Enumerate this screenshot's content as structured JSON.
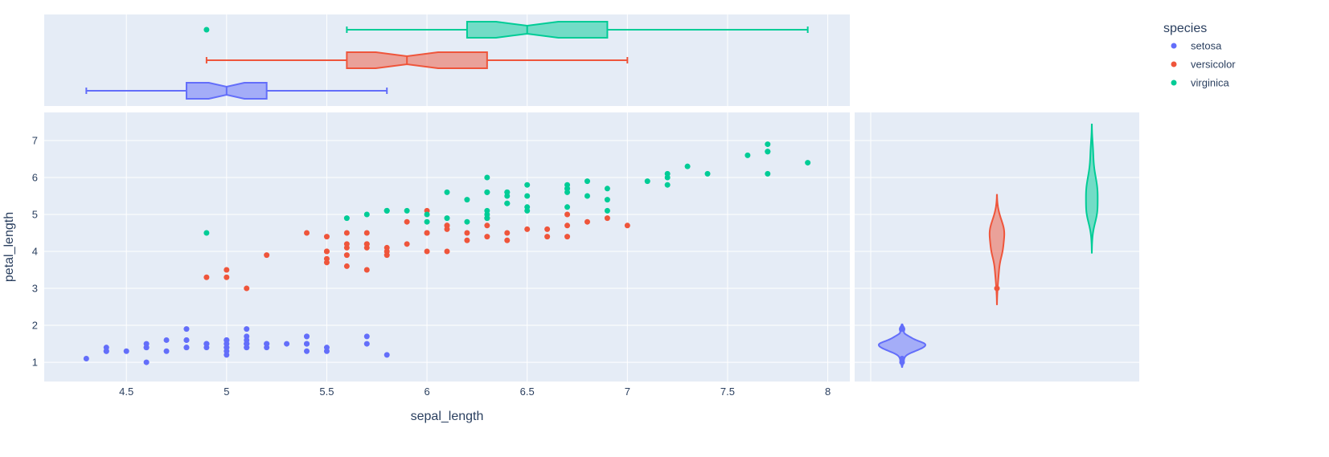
{
  "chart_data": {
    "type": "scatter",
    "xlabel": "sepal_length",
    "ylabel": "petal_length",
    "xlim": [
      4.09,
      8.11
    ],
    "ylim": [
      0.48,
      7.76
    ],
    "xticks": [
      4.5,
      5,
      5.5,
      6,
      6.5,
      7,
      7.5,
      8
    ],
    "xtick_labels": [
      "4.5",
      "5",
      "5.5",
      "6",
      "6.5",
      "7",
      "7.5",
      "8"
    ],
    "yticks": [
      1,
      2,
      3,
      4,
      5,
      6,
      7
    ],
    "ytick_labels": [
      "1",
      "2",
      "3",
      "4",
      "5",
      "6",
      "7"
    ],
    "grid": true,
    "background": "#E5ECF6",
    "legend": {
      "title": "species",
      "placement": "top-right"
    },
    "marginal_x": "box (notched)",
    "marginal_y": "violin",
    "series": [
      {
        "name": "setosa",
        "color": "#636efa",
        "x": [
          5.1,
          4.9,
          4.7,
          4.6,
          5.0,
          5.4,
          4.6,
          5.0,
          4.4,
          4.9,
          5.4,
          4.8,
          4.8,
          4.3,
          5.8,
          5.7,
          5.4,
          5.1,
          5.7,
          5.1,
          5.4,
          5.1,
          4.6,
          5.1,
          4.8,
          5.0,
          5.0,
          5.2,
          5.2,
          4.7,
          4.8,
          5.4,
          5.2,
          5.5,
          4.9,
          5.0,
          5.5,
          4.9,
          4.4,
          5.1,
          5.0,
          4.5,
          4.4,
          5.0,
          5.1,
          4.8,
          5.1,
          4.6,
          5.3,
          5.0
        ],
        "y": [
          1.4,
          1.4,
          1.3,
          1.5,
          1.4,
          1.7,
          1.4,
          1.5,
          1.4,
          1.5,
          1.5,
          1.6,
          1.4,
          1.1,
          1.2,
          1.5,
          1.3,
          1.4,
          1.7,
          1.5,
          1.7,
          1.5,
          1.0,
          1.7,
          1.9,
          1.6,
          1.6,
          1.5,
          1.4,
          1.6,
          1.6,
          1.5,
          1.5,
          1.4,
          1.5,
          1.2,
          1.3,
          1.5,
          1.3,
          1.5,
          1.3,
          1.3,
          1.3,
          1.6,
          1.9,
          1.4,
          1.6,
          1.4,
          1.5,
          1.4
        ],
        "box": {
          "min": 4.3,
          "q1": 4.8,
          "median": 5.0,
          "q3": 5.2,
          "max": 5.8,
          "outliers": []
        }
      },
      {
        "name": "versicolor",
        "color": "#EF553B",
        "x": [
          7.0,
          6.4,
          6.9,
          5.5,
          6.5,
          5.7,
          6.3,
          4.9,
          6.6,
          5.2,
          5.0,
          5.9,
          6.0,
          6.1,
          5.6,
          6.7,
          5.6,
          5.8,
          6.2,
          5.6,
          5.9,
          6.1,
          6.3,
          6.1,
          6.4,
          6.6,
          6.8,
          6.7,
          6.0,
          5.7,
          5.5,
          5.5,
          5.8,
          6.0,
          5.4,
          6.0,
          6.7,
          6.3,
          5.6,
          5.5,
          5.5,
          6.1,
          5.8,
          5.0,
          5.6,
          5.7,
          5.7,
          6.2,
          5.1,
          5.7
        ],
        "y": [
          4.7,
          4.5,
          4.9,
          4.0,
          4.6,
          4.5,
          4.7,
          3.3,
          4.6,
          3.9,
          3.5,
          4.2,
          4.0,
          4.7,
          3.6,
          4.4,
          4.5,
          4.1,
          4.5,
          3.9,
          4.8,
          4.0,
          4.9,
          4.7,
          4.3,
          4.4,
          4.8,
          5.0,
          4.5,
          3.5,
          3.8,
          3.7,
          3.9,
          5.1,
          4.5,
          4.5,
          4.7,
          4.4,
          4.1,
          4.0,
          4.4,
          4.6,
          4.0,
          3.3,
          4.2,
          4.2,
          4.2,
          4.3,
          3.0,
          4.1
        ],
        "box": {
          "min": 4.9,
          "q1": 5.6,
          "median": 5.9,
          "q3": 6.3,
          "max": 7.0,
          "outliers": []
        }
      },
      {
        "name": "virginica",
        "color": "#00cc96",
        "x": [
          6.3,
          5.8,
          7.1,
          6.3,
          6.5,
          7.6,
          4.9,
          7.3,
          6.7,
          7.2,
          6.5,
          6.4,
          6.8,
          5.7,
          5.8,
          6.4,
          6.5,
          7.7,
          7.7,
          6.0,
          6.9,
          5.6,
          7.7,
          6.3,
          6.7,
          7.2,
          6.2,
          6.1,
          6.4,
          7.2,
          7.4,
          7.9,
          6.4,
          6.3,
          6.1,
          7.7,
          6.3,
          6.4,
          6.0,
          6.9,
          6.7,
          6.9,
          5.8,
          6.8,
          6.7,
          6.7,
          6.3,
          6.5,
          6.2,
          5.9
        ],
        "y": [
          6.0,
          5.1,
          5.9,
          5.6,
          5.8,
          6.6,
          4.5,
          6.3,
          5.8,
          6.1,
          5.1,
          5.3,
          5.5,
          5.0,
          5.1,
          5.3,
          5.5,
          6.7,
          6.9,
          5.0,
          5.7,
          4.9,
          6.7,
          4.9,
          5.7,
          6.0,
          4.8,
          4.9,
          5.6,
          5.8,
          6.1,
          6.4,
          5.6,
          5.1,
          5.6,
          6.1,
          5.6,
          5.5,
          4.8,
          5.4,
          5.6,
          5.1,
          5.1,
          5.9,
          5.7,
          5.2,
          5.0,
          5.2,
          5.4,
          5.1
        ],
        "box": {
          "min": 5.6,
          "q1": 6.2,
          "median": 6.5,
          "q3": 6.9,
          "max": 7.9,
          "outliers": [
            4.9
          ]
        }
      }
    ]
  }
}
